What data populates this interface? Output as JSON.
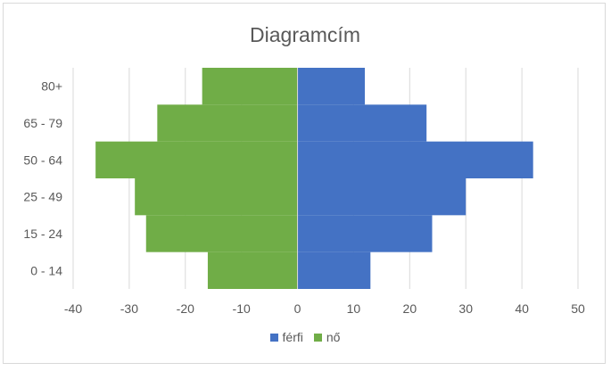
{
  "chart_data": {
    "type": "bar",
    "orientation": "horizontal",
    "title": "Diagramcím",
    "xlabel": "",
    "ylabel": "",
    "categories": [
      "0 - 14",
      "15 - 24",
      "25 - 49",
      "50 - 64",
      "65 - 79",
      "80+"
    ],
    "series": [
      {
        "name": "férfi",
        "values": [
          13,
          24,
          30,
          42,
          23,
          12
        ],
        "color": "#4472c4"
      },
      {
        "name": "nő",
        "values": [
          -16,
          -27,
          -29,
          -36,
          -25,
          -17
        ],
        "color": "#70ad47"
      }
    ],
    "xlim": [
      -40,
      50
    ],
    "xticks": [
      -40,
      -30,
      -20,
      -10,
      0,
      10,
      20,
      30,
      40,
      50
    ],
    "grid": "vertical",
    "legend": "bottom"
  }
}
